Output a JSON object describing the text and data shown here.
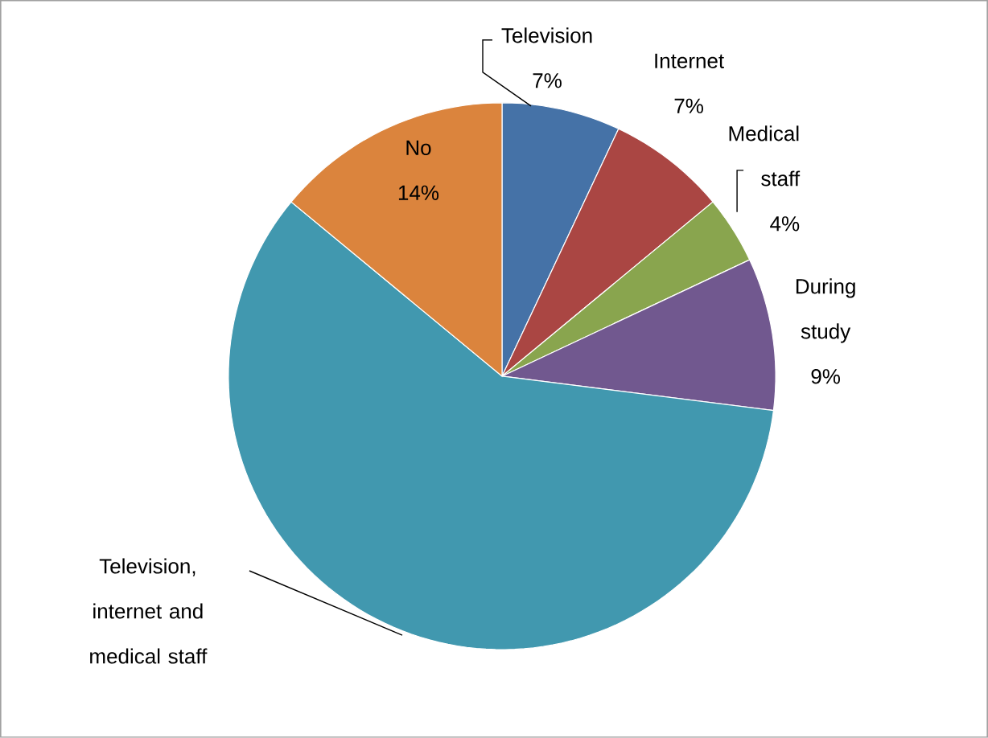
{
  "chart_data": {
    "type": "pie",
    "categories": [
      "Television",
      "Internet",
      "Medical staff",
      "During study",
      "Television, internet and medical staff",
      "No"
    ],
    "values": [
      7,
      7,
      4,
      9,
      59,
      14
    ],
    "colors": [
      "#4572a7",
      "#aa4643",
      "#89a54e",
      "#71588f",
      "#4198af",
      "#db843d"
    ],
    "value_labels": [
      "7%",
      "7%",
      "4%",
      "9%",
      null,
      "14%"
    ]
  }
}
